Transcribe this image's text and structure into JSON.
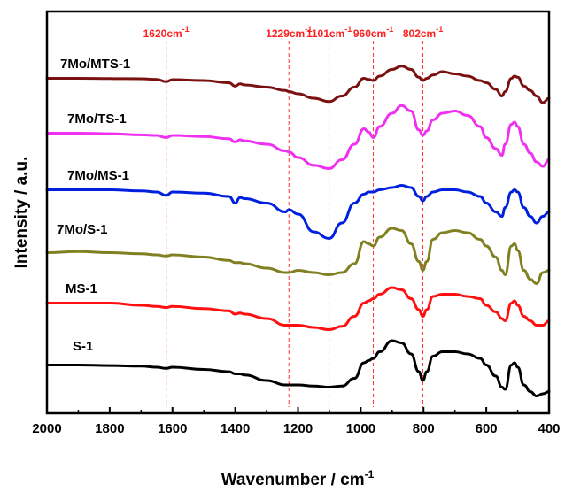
{
  "chart_data": {
    "type": "line",
    "xlabel": "Wavenumber / cm",
    "xlabel_superscript": "-1",
    "ylabel": "Intensity / a.u.",
    "xlim": [
      2000,
      400
    ],
    "x_reversed": true,
    "xticks": [
      2000,
      1800,
      1600,
      1400,
      1200,
      1000,
      800,
      600,
      400
    ],
    "y_ticks_shown": false,
    "grid": false,
    "legend": "none",
    "reference_lines": [
      {
        "x": 1620,
        "label": "1620cm",
        "sup": "-1",
        "color": "#ff3030"
      },
      {
        "x": 1229,
        "label": "1229cm",
        "sup": "-1",
        "color": "#ff3030"
      },
      {
        "x": 1101,
        "label": "1101cm",
        "sup": "-1",
        "color": "#ff3030"
      },
      {
        "x": 960,
        "label": "960cm",
        "sup": "-1",
        "color": "#ff3030"
      },
      {
        "x": 802,
        "label": "802cm",
        "sup": "-1",
        "color": "#ff3030"
      }
    ],
    "x": [
      2000,
      1900,
      1800,
      1700,
      1650,
      1620,
      1600,
      1500,
      1420,
      1400,
      1385,
      1370,
      1300,
      1240,
      1229,
      1200,
      1150,
      1101,
      1060,
      1020,
      990,
      975,
      960,
      940,
      900,
      870,
      840,
      815,
      802,
      790,
      770,
      740,
      700,
      660,
      620,
      600,
      570,
      550,
      540,
      520,
      510,
      500,
      480,
      460,
      440,
      420,
      400
    ],
    "series": [
      {
        "name": "7Mo/MTS-1",
        "color": "#7a1010",
        "values": [
          2.0,
          2.0,
          1.8,
          1.6,
          1.0,
          -1.0,
          0.8,
          0.0,
          -2.0,
          -5.0,
          -3.0,
          -4.0,
          -6.0,
          -9.0,
          -10.0,
          -12.0,
          -16.0,
          -19.0,
          -14.0,
          -6.0,
          2.0,
          1.0,
          0.0,
          4.0,
          10.0,
          13.0,
          10.0,
          3.0,
          0.0,
          2.0,
          5.0,
          8.0,
          6.0,
          4.0,
          0.0,
          -2.0,
          -8.0,
          -14.0,
          -10.0,
          2.0,
          4.0,
          3.0,
          -5.0,
          -9.0,
          -14.0,
          -20.0,
          -16.0
        ]
      },
      {
        "name": "7Mo/TS-1",
        "color": "#f030f0",
        "values": [
          2.0,
          2.0,
          1.5,
          0.5,
          0.0,
          -2.0,
          0.0,
          -1.0,
          -3.0,
          -6.0,
          -4.0,
          -5.0,
          -8.0,
          -14.0,
          -15.0,
          -20.0,
          -27.0,
          -30.0,
          -22.0,
          -8.0,
          6.0,
          3.0,
          -2.0,
          8.0,
          20.0,
          27.0,
          22.0,
          5.0,
          0.0,
          4.0,
          14.0,
          20.0,
          22.0,
          18.0,
          8.0,
          -2.0,
          -12.0,
          -18.0,
          -8.0,
          10.0,
          12.0,
          8.0,
          -8.0,
          -16.0,
          -24.0,
          -28.0,
          -22.0
        ]
      },
      {
        "name": "7Mo/MS-1",
        "color": "#0020e0",
        "values": [
          2.0,
          2.0,
          2.0,
          1.0,
          0.0,
          -3.0,
          0.0,
          -1.0,
          -4.0,
          -10.0,
          -5.0,
          -6.0,
          -10.0,
          -18.0,
          -16.0,
          -20.0,
          -36.0,
          -42.0,
          -28.0,
          -10.0,
          -2.0,
          0.0,
          0.0,
          2.0,
          4.0,
          6.0,
          4.0,
          -4.0,
          -8.0,
          -4.0,
          0.0,
          2.0,
          2.0,
          0.0,
          -4.0,
          -10.0,
          -18.0,
          -22.0,
          -14.0,
          0.0,
          2.0,
          0.0,
          -14.0,
          -22.0,
          -28.0,
          -22.0,
          -18.0
        ]
      },
      {
        "name": "7Mo/S-1",
        "color": "#808020",
        "values": [
          2.0,
          3.0,
          2.0,
          1.0,
          0.0,
          -1.0,
          0.0,
          -2.0,
          -5.0,
          -7.0,
          -7.0,
          -8.0,
          -12.0,
          -16.0,
          -16.0,
          -14.0,
          -16.0,
          -18.0,
          -16.0,
          -8.0,
          12.0,
          10.0,
          8.0,
          16.0,
          24.0,
          22.0,
          10.0,
          -6.0,
          -14.0,
          -6.0,
          14.0,
          20.0,
          22.0,
          20.0,
          14.0,
          8.0,
          -2.0,
          -14.0,
          -18.0,
          8.0,
          10.0,
          4.0,
          -14.0,
          -22.0,
          -26.0,
          -16.0,
          -14.0
        ]
      },
      {
        "name": "MS-1",
        "color": "#ff1010",
        "values": [
          2.0,
          2.0,
          2.0,
          0.0,
          -1.0,
          -2.0,
          -1.0,
          -3.0,
          -5.0,
          -8.0,
          -7.0,
          -8.0,
          -12.0,
          -18.0,
          -18.0,
          -18.0,
          -20.0,
          -22.0,
          -19.0,
          -10.0,
          2.0,
          4.0,
          6.0,
          10.0,
          16.0,
          14.0,
          6.0,
          -4.0,
          -10.0,
          -4.0,
          8.0,
          10.0,
          10.0,
          8.0,
          6.0,
          0.0,
          -6.0,
          -12.0,
          -14.0,
          2.0,
          4.0,
          0.0,
          -10.0,
          -14.0,
          -18.0,
          -18.0,
          -14.0
        ]
      },
      {
        "name": "S-1",
        "color": "#000000",
        "values": [
          2.0,
          2.0,
          1.5,
          1.0,
          0.0,
          -1.0,
          0.0,
          -2.0,
          -4.0,
          -6.0,
          -6.0,
          -7.0,
          -12.0,
          -16.0,
          -16.0,
          -16.0,
          -17.0,
          -18.0,
          -17.0,
          -10.0,
          4.0,
          6.0,
          8.0,
          14.0,
          24.0,
          22.0,
          12.0,
          -4.0,
          -12.0,
          -4.0,
          10.0,
          14.0,
          14.0,
          12.0,
          8.0,
          2.0,
          -8.0,
          -18.0,
          -20.0,
          2.0,
          4.0,
          0.0,
          -16.0,
          -22.0,
          -26.0,
          -24.0,
          -22.0
        ]
      }
    ]
  }
}
